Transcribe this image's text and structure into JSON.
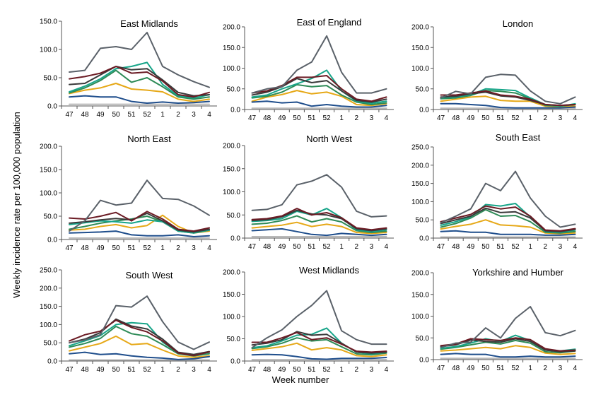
{
  "figure": {
    "y_axis_label": "Weekly incidence rate per 100,000 population",
    "x_axis_label": "Week number"
  },
  "series_colors": [
    "#5a6169",
    "#6b1b24",
    "#3a3a3a",
    "#17a589",
    "#2e8b57",
    "#e6a817",
    "#1f4e8c",
    "#b8b8b8"
  ],
  "chart_data": [
    {
      "type": "line",
      "title": "East Midlands",
      "categories": [
        "47",
        "48",
        "49",
        "50",
        "51",
        "52",
        "1",
        "2",
        "3",
        "4"
      ],
      "ylim": [
        0,
        150
      ],
      "ytick_labels": [
        "0.0",
        "50.0",
        "100.0",
        "150.0"
      ],
      "series": [
        {
          "values": [
            60,
            63,
            102,
            105,
            100,
            130,
            70,
            55,
            43,
            33
          ]
        },
        {
          "values": [
            48,
            52,
            58,
            70,
            58,
            60,
            44,
            20,
            16,
            24
          ]
        },
        {
          "values": [
            38,
            40,
            55,
            70,
            64,
            66,
            46,
            24,
            18,
            20
          ]
        },
        {
          "values": [
            25,
            35,
            48,
            66,
            70,
            77,
            38,
            18,
            14,
            20
          ]
        },
        {
          "values": [
            23,
            32,
            45,
            63,
            42,
            50,
            34,
            16,
            12,
            16
          ]
        },
        {
          "values": [
            22,
            28,
            32,
            40,
            30,
            28,
            25,
            12,
            8,
            12
          ]
        },
        {
          "values": [
            16,
            18,
            16,
            16,
            8,
            5,
            7,
            5,
            6,
            8
          ]
        },
        {
          "values": [
            3,
            3,
            3,
            3,
            3,
            3,
            3,
            3,
            3,
            3
          ]
        }
      ]
    },
    {
      "type": "line",
      "title": "East of England",
      "categories": [
        "47",
        "48",
        "49",
        "50",
        "51",
        "52",
        "1",
        "2",
        "3",
        "4"
      ],
      "ylim": [
        0,
        200
      ],
      "ytick_labels": [
        "0.0",
        "50.0",
        "100.0",
        "150.0",
        "200.0"
      ],
      "series": [
        {
          "values": [
            40,
            50,
            55,
            95,
            115,
            178,
            90,
            40,
            40,
            50
          ]
        },
        {
          "values": [
            40,
            45,
            58,
            78,
            78,
            82,
            50,
            25,
            20,
            30
          ]
        },
        {
          "values": [
            35,
            42,
            55,
            75,
            65,
            70,
            45,
            22,
            18,
            25
          ]
        },
        {
          "values": [
            30,
            35,
            50,
            62,
            75,
            95,
            45,
            20,
            15,
            20
          ]
        },
        {
          "values": [
            28,
            32,
            42,
            60,
            55,
            58,
            35,
            18,
            12,
            16
          ]
        },
        {
          "values": [
            20,
            30,
            36,
            46,
            38,
            42,
            32,
            12,
            10,
            14
          ]
        },
        {
          "values": [
            18,
            20,
            16,
            18,
            8,
            12,
            8,
            6,
            6,
            10
          ]
        },
        {
          "values": [
            3,
            3,
            3,
            3,
            3,
            3,
            3,
            3,
            3,
            3
          ]
        }
      ]
    },
    {
      "type": "line",
      "title": "London",
      "categories": [
        "47",
        "48",
        "49",
        "50",
        "51",
        "52",
        "1",
        "2",
        "3",
        "4"
      ],
      "ylim": [
        0,
        200
      ],
      "ytick_labels": [
        "0.0",
        "50.0",
        "100.0",
        "150.0",
        "200.0"
      ],
      "series": [
        {
          "values": [
            28,
            44,
            38,
            78,
            85,
            83,
            45,
            20,
            14,
            30
          ]
        },
        {
          "values": [
            35,
            35,
            40,
            45,
            35,
            32,
            25,
            12,
            10,
            12
          ]
        },
        {
          "values": [
            30,
            32,
            38,
            42,
            33,
            30,
            22,
            12,
            10,
            12
          ]
        },
        {
          "values": [
            28,
            30,
            36,
            50,
            48,
            46,
            28,
            12,
            8,
            14
          ]
        },
        {
          "values": [
            26,
            28,
            34,
            46,
            44,
            40,
            26,
            10,
            8,
            12
          ]
        },
        {
          "values": [
            20,
            25,
            30,
            32,
            22,
            20,
            20,
            8,
            6,
            8
          ]
        },
        {
          "values": [
            14,
            14,
            12,
            10,
            5,
            4,
            4,
            4,
            4,
            6
          ]
        },
        {
          "values": [
            3,
            3,
            3,
            3,
            3,
            3,
            3,
            3,
            3,
            3
          ]
        }
      ]
    },
    {
      "type": "line",
      "title": "North East",
      "categories": [
        "47",
        "48",
        "49",
        "50",
        "51",
        "52",
        "1",
        "2",
        "3",
        "4"
      ],
      "ylim": [
        0,
        200
      ],
      "ytick_labels": [
        "0.0",
        "50.0",
        "100.0",
        "150.0",
        "200.0"
      ],
      "series": [
        {
          "values": [
            18,
            40,
            84,
            74,
            78,
            127,
            88,
            86,
            72,
            52
          ]
        },
        {
          "values": [
            46,
            44,
            50,
            58,
            40,
            60,
            44,
            22,
            18,
            25
          ]
        },
        {
          "values": [
            35,
            38,
            42,
            45,
            42,
            56,
            40,
            20,
            16,
            22
          ]
        },
        {
          "values": [
            32,
            36,
            40,
            38,
            35,
            42,
            38,
            18,
            14,
            20
          ]
        },
        {
          "values": [
            22,
            28,
            35,
            40,
            44,
            50,
            38,
            18,
            14,
            20
          ]
        },
        {
          "values": [
            20,
            22,
            28,
            32,
            25,
            30,
            52,
            28,
            14,
            18
          ]
        },
        {
          "values": [
            14,
            15,
            16,
            18,
            10,
            8,
            8,
            10,
            6,
            8
          ]
        },
        {
          "values": [
            3,
            3,
            3,
            3,
            3,
            3,
            3,
            3,
            3,
            3
          ]
        }
      ]
    },
    {
      "type": "line",
      "title": "North West",
      "categories": [
        "47",
        "48",
        "49",
        "50",
        "51",
        "52",
        "1",
        "2",
        "3",
        "4"
      ],
      "ylim": [
        0,
        200
      ],
      "ytick_labels": [
        "0.0",
        "50.0",
        "100.0",
        "150.0",
        "200.0"
      ],
      "series": [
        {
          "values": [
            60,
            62,
            72,
            115,
            123,
            137,
            110,
            58,
            46,
            48
          ]
        },
        {
          "values": [
            40,
            42,
            48,
            64,
            50,
            55,
            44,
            22,
            18,
            22
          ]
        },
        {
          "values": [
            38,
            40,
            46,
            60,
            52,
            50,
            42,
            20,
            16,
            20
          ]
        },
        {
          "values": [
            36,
            38,
            42,
            58,
            50,
            64,
            44,
            18,
            14,
            18
          ]
        },
        {
          "values": [
            30,
            32,
            38,
            48,
            35,
            42,
            35,
            16,
            12,
            15
          ]
        },
        {
          "values": [
            22,
            25,
            28,
            34,
            25,
            30,
            25,
            12,
            10,
            12
          ]
        },
        {
          "values": [
            16,
            18,
            20,
            14,
            8,
            6,
            10,
            8,
            6,
            8
          ]
        },
        {
          "values": [
            3,
            3,
            3,
            3,
            3,
            3,
            3,
            3,
            3,
            3
          ]
        }
      ]
    },
    {
      "type": "line",
      "title": "South East",
      "categories": [
        "47",
        "48",
        "49",
        "50",
        "51",
        "52",
        "1",
        "2",
        "3",
        "4"
      ],
      "ylim": [
        0,
        250
      ],
      "ytick_labels": [
        "0.0",
        "50.0",
        "100.0",
        "150.0",
        "200.0",
        "250.0"
      ],
      "series": [
        {
          "values": [
            42,
            60,
            80,
            150,
            130,
            183,
            110,
            60,
            30,
            38
          ]
        },
        {
          "values": [
            45,
            55,
            65,
            88,
            80,
            85,
            60,
            22,
            20,
            26
          ]
        },
        {
          "values": [
            40,
            50,
            60,
            82,
            70,
            72,
            55,
            20,
            18,
            24
          ]
        },
        {
          "values": [
            35,
            45,
            58,
            92,
            88,
            95,
            58,
            18,
            16,
            22
          ]
        },
        {
          "values": [
            30,
            40,
            55,
            78,
            60,
            62,
            45,
            16,
            14,
            18
          ]
        },
        {
          "values": [
            25,
            32,
            38,
            50,
            36,
            34,
            30,
            14,
            12,
            14
          ]
        },
        {
          "values": [
            18,
            20,
            16,
            16,
            10,
            10,
            10,
            8,
            8,
            10
          ]
        },
        {
          "values": [
            3,
            3,
            3,
            3,
            3,
            3,
            3,
            3,
            3,
            3
          ]
        }
      ]
    },
    {
      "type": "line",
      "title": "South West",
      "categories": [
        "47",
        "48",
        "49",
        "50",
        "51",
        "52",
        "1",
        "2",
        "3",
        "4"
      ],
      "ylim": [
        0,
        250
      ],
      "ytick_labels": [
        "0.0",
        "50.0",
        "100.0",
        "150.0",
        "200.0",
        "250.0"
      ],
      "series": [
        {
          "values": [
            50,
            58,
            72,
            152,
            148,
            178,
            108,
            52,
            32,
            52
          ]
        },
        {
          "values": [
            55,
            72,
            82,
            112,
            92,
            80,
            55,
            22,
            15,
            25
          ]
        },
        {
          "values": [
            50,
            60,
            78,
            115,
            96,
            88,
            60,
            24,
            18,
            26
          ]
        },
        {
          "values": [
            42,
            55,
            70,
            100,
            105,
            102,
            52,
            22,
            16,
            24
          ]
        },
        {
          "values": [
            38,
            48,
            62,
            95,
            75,
            68,
            45,
            20,
            14,
            20
          ]
        },
        {
          "values": [
            28,
            38,
            48,
            68,
            45,
            48,
            30,
            14,
            10,
            14
          ]
        },
        {
          "values": [
            20,
            24,
            18,
            20,
            14,
            10,
            8,
            4,
            6,
            12
          ]
        },
        {
          "values": [
            3,
            3,
            3,
            3,
            3,
            3,
            3,
            3,
            3,
            3
          ]
        }
      ]
    },
    {
      "type": "line",
      "title": "West Midlands",
      "categories": [
        "47",
        "48",
        "49",
        "50",
        "51",
        "52",
        "1",
        "2",
        "3",
        "4"
      ],
      "ylim": [
        0,
        200
      ],
      "ytick_labels": [
        "0.0",
        "50.0",
        "100.0",
        "150.0",
        "200.0"
      ],
      "series": [
        {
          "values": [
            30,
            52,
            70,
            100,
            125,
            158,
            68,
            48,
            38,
            38
          ]
        },
        {
          "values": [
            42,
            42,
            52,
            64,
            48,
            52,
            38,
            22,
            20,
            22
          ]
        },
        {
          "values": [
            36,
            40,
            48,
            66,
            58,
            60,
            40,
            20,
            18,
            20
          ]
        },
        {
          "values": [
            30,
            34,
            45,
            58,
            60,
            74,
            40,
            20,
            16,
            20
          ]
        },
        {
          "values": [
            28,
            32,
            40,
            52,
            45,
            48,
            32,
            16,
            14,
            18
          ]
        },
        {
          "values": [
            24,
            28,
            32,
            40,
            25,
            30,
            25,
            12,
            10,
            14
          ]
        },
        {
          "values": [
            14,
            15,
            14,
            10,
            5,
            4,
            6,
            6,
            6,
            8
          ]
        },
        {
          "values": [
            3,
            3,
            3,
            3,
            3,
            3,
            3,
            3,
            3,
            3
          ]
        }
      ]
    },
    {
      "type": "line",
      "title": "Yorkshire and Humber",
      "categories": [
        "47",
        "48",
        "49",
        "50",
        "51",
        "52",
        "1",
        "2",
        "3",
        "4"
      ],
      "ylim": [
        0,
        200
      ],
      "ytick_labels": [
        "0.0",
        "50.0",
        "100.0",
        "150.0",
        "200.0"
      ],
      "series": [
        {
          "values": [
            28,
            38,
            40,
            73,
            50,
            95,
            122,
            62,
            55,
            67
          ]
        },
        {
          "values": [
            32,
            36,
            48,
            46,
            44,
            50,
            46,
            25,
            20,
            22
          ]
        },
        {
          "values": [
            30,
            34,
            45,
            42,
            40,
            48,
            42,
            22,
            18,
            20
          ]
        },
        {
          "values": [
            26,
            30,
            38,
            48,
            42,
            56,
            44,
            22,
            20,
            24
          ]
        },
        {
          "values": [
            24,
            28,
            34,
            40,
            36,
            44,
            38,
            18,
            16,
            20
          ]
        },
        {
          "values": [
            20,
            22,
            25,
            28,
            25,
            32,
            28,
            15,
            12,
            14
          ]
        },
        {
          "values": [
            12,
            14,
            12,
            12,
            6,
            6,
            8,
            6,
            6,
            8
          ]
        },
        {
          "values": [
            3,
            3,
            3,
            3,
            3,
            3,
            3,
            3,
            3,
            3
          ]
        }
      ]
    }
  ]
}
